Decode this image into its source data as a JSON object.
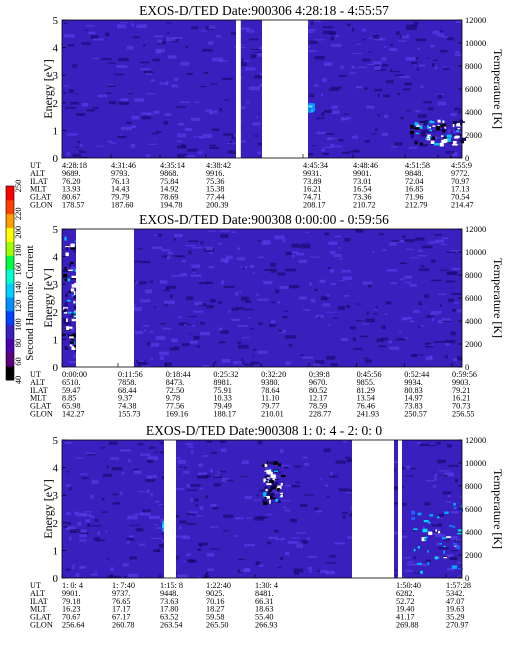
{
  "colors": {
    "background": "#3a1fbf",
    "speckle": "#5a3ce8",
    "dark": "#1a0a70",
    "accents": [
      "#00c8ff",
      "#00ffff",
      "#ffffff",
      "#000000",
      "#40ff40"
    ]
  },
  "colorbar": {
    "label": "Second Harmonic Current",
    "range": [
      40,
      250
    ],
    "ticks": [
      40,
      60,
      80,
      100,
      120,
      140,
      160,
      180,
      200,
      220,
      250
    ],
    "colors": [
      "#000000",
      "#5a007a",
      "#4b00b0",
      "#3a1fbf",
      "#0040ff",
      "#0090ff",
      "#00d0ff",
      "#00ffd0",
      "#00ff40",
      "#a0ff00",
      "#ffff00",
      "#ffa000",
      "#ff4000",
      "#ff0000"
    ]
  },
  "chart_data": [
    {
      "type": "heatmap",
      "title": "EXOS-D/TED   Date:900306  4:28:18 - 4:55:57",
      "ylabel": "Energy [eV]",
      "y2label": "Temperature [K]",
      "ylim": [
        0,
        5
      ],
      "y2lim": [
        0,
        12000
      ],
      "yticks": [
        0,
        1,
        2,
        3,
        4,
        5
      ],
      "y2ticks": [
        0,
        2000,
        4000,
        6000,
        8000,
        10000,
        12000
      ],
      "data_gaps": [
        [
          0.435,
          0.447
        ],
        [
          0.5,
          0.615
        ]
      ],
      "features": [
        {
          "x": 0.87,
          "y": 0.1,
          "w": 0.13,
          "h": 0.18,
          "kind": "noise"
        },
        {
          "x": 0.61,
          "y": 0.35,
          "w": 0.01,
          "h": 0.05,
          "kind": "cyan"
        }
      ],
      "table": {
        "row_labels": [
          "UT",
          "ALT",
          "ILAT",
          "MLT",
          "GLAT",
          "GLON"
        ],
        "columns": [
          [
            "4:28:18",
            "9689.",
            "76.20",
            "13.93",
            "80.67",
            "178.57"
          ],
          [
            "4:31:46",
            "9793.",
            "76.13",
            "14.43",
            "79.79",
            "187.60"
          ],
          [
            "4:35:14",
            "9868.",
            "75.84",
            "14.92",
            "78.69",
            "194.78"
          ],
          [
            "4:38:42",
            "9916.",
            "75.36",
            "15.38",
            "77.44",
            "200.39"
          ],
          [
            "4:45:34",
            "9931.",
            "73.89",
            "16.21",
            "74.71",
            "208.17"
          ],
          [
            "4:48:46",
            "9901.",
            "73.01",
            "16.54",
            "73.36",
            "210.72"
          ],
          [
            "4:51:58",
            "9848.",
            "72.04",
            "16.85",
            "71.96",
            "212.79"
          ],
          [
            "4:55:9",
            "9772.",
            "70.97",
            "17.13",
            "70.54",
            "214.47"
          ]
        ]
      }
    },
    {
      "type": "heatmap",
      "title": "EXOS-D/TED   Date:900308  0:00:00 - 0:59:56",
      "ylabel": "Energy [eV]",
      "y2label": "Temperature [K]",
      "ylim": [
        0,
        5
      ],
      "y2lim": [
        0,
        12000
      ],
      "yticks": [
        0,
        1,
        2,
        3,
        4,
        5
      ],
      "y2ticks": [
        0,
        2000,
        4000,
        6000,
        8000,
        10000,
        12000
      ],
      "data_gaps": [
        [
          0.035,
          0.18
        ]
      ],
      "features": [
        {
          "x": 0.0,
          "y": 0.1,
          "w": 0.035,
          "h": 0.85,
          "kind": "noise"
        }
      ],
      "table": {
        "row_labels": [
          "UT",
          "ALT",
          "ILAT",
          "MLT",
          "GLAT",
          "GLON"
        ],
        "columns": [
          [
            "0:00:00",
            "6510.",
            "59.47",
            "8.85",
            "65.98",
            "142.27"
          ],
          [
            "0:11:56",
            "7858.",
            "68.44",
            "9.37",
            "74.38",
            "155.73"
          ],
          [
            "0:18:44",
            "8473.",
            "72.50",
            "9.78",
            "77.56",
            "169.16"
          ],
          [
            "0:25:32",
            "8981.",
            "75.91",
            "10.33",
            "79.49",
            "188.17"
          ],
          [
            "0:32:20",
            "9380.",
            "78.64",
            "11.10",
            "79.77",
            "210.01"
          ],
          [
            "0:39:8",
            "9670.",
            "80.52",
            "12.17",
            "78.59",
            "228.77"
          ],
          [
            "0:45:56",
            "9855.",
            "81.29",
            "13.54",
            "76.46",
            "241.93"
          ],
          [
            "0:52:44",
            "9934.",
            "80.83",
            "14.97",
            "73.83",
            "250.57"
          ],
          [
            "0:59:56",
            "9903.",
            "79.21",
            "16.21",
            "70.73",
            "256.55"
          ]
        ]
      }
    },
    {
      "type": "heatmap",
      "title": "EXOS-D/TED   Date:900308  1: 0: 4 - 2: 0: 0",
      "ylabel": "Energy [eV]",
      "y2label": "Temperature [K]",
      "ylim": [
        0,
        5
      ],
      "y2lim": [
        0,
        12000
      ],
      "yticks": [
        0,
        1,
        2,
        3,
        4,
        5
      ],
      "y2ticks": [
        0,
        2000,
        4000,
        6000,
        8000,
        10000,
        12000
      ],
      "data_gaps": [
        [
          0.255,
          0.285
        ],
        [
          0.725,
          0.83
        ],
        [
          0.84,
          0.85
        ]
      ],
      "features": [
        {
          "x": 0.87,
          "y": 0.05,
          "w": 0.13,
          "h": 0.5,
          "kind": "cyan"
        },
        {
          "x": 0.25,
          "y": 0.35,
          "w": 0.01,
          "h": 0.08,
          "kind": "cyan"
        },
        {
          "x": 0.5,
          "y": 0.55,
          "w": 0.05,
          "h": 0.3,
          "kind": "noise"
        }
      ],
      "table": {
        "row_labels": [
          "UT",
          "ALT",
          "ILAT",
          "MLT",
          "GLAT",
          "GLON"
        ],
        "columns": [
          [
            "1: 0: 4",
            "9901.",
            "79.18",
            "16.23",
            "70.67",
            "256.64"
          ],
          [
            "1: 7:40",
            "9737.",
            "76.65",
            "17.17",
            "67.17",
            "260.78"
          ],
          [
            "1:15: 8",
            "9448.",
            "73.63",
            "17.80",
            "63.52",
            "263.54"
          ],
          [
            "1:22:40",
            "9025.",
            "70.16",
            "18.27",
            "59.58",
            "265.50"
          ],
          [
            "1:30: 4",
            "8481.",
            "66.31",
            "18.63",
            "55.40",
            "266.93"
          ],
          [
            "1:50:40",
            "6282.",
            "52.72",
            "19.40",
            "41.17",
            "269.88"
          ],
          [
            "1:57:28",
            "5342.",
            "47.07",
            "19.63",
            "35.29",
            "270.97"
          ]
        ]
      }
    }
  ]
}
